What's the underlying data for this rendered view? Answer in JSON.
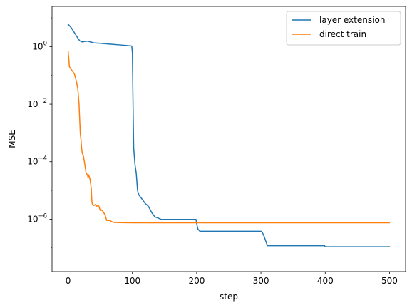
{
  "chart_data": {
    "type": "line",
    "title": "",
    "xlabel": "step",
    "ylabel": "MSE",
    "xlim": [
      -25,
      525
    ],
    "ylim": [
      1.5e-08,
      25
    ],
    "yscale": "log",
    "grid": false,
    "legend_position": "top-right",
    "xticks": [
      0,
      100,
      200,
      300,
      400,
      500
    ],
    "xtick_labels": [
      "0",
      "100",
      "200",
      "300",
      "400",
      "500"
    ],
    "yticks": [
      {
        "value": 1,
        "base": "10",
        "exp": "0"
      },
      {
        "value": 0.01,
        "base": "10",
        "exp": "−2"
      },
      {
        "value": 0.0001,
        "base": "10",
        "exp": "−4"
      },
      {
        "value": 1e-06,
        "base": "10",
        "exp": "−6"
      }
    ],
    "series": [
      {
        "name": "layer extension",
        "color": "#1f77b4",
        "points": [
          [
            0,
            6.0
          ],
          [
            5,
            4.5
          ],
          [
            10,
            3.0
          ],
          [
            15,
            2.0
          ],
          [
            18,
            1.6
          ],
          [
            22,
            1.45
          ],
          [
            25,
            1.5
          ],
          [
            30,
            1.55
          ],
          [
            35,
            1.45
          ],
          [
            40,
            1.35
          ],
          [
            50,
            1.3
          ],
          [
            60,
            1.25
          ],
          [
            70,
            1.2
          ],
          [
            80,
            1.15
          ],
          [
            90,
            1.1
          ],
          [
            99,
            1.05
          ],
          [
            100,
            0.6
          ],
          [
            101,
            0.01
          ],
          [
            102,
            0.0003
          ],
          [
            104,
            8e-05
          ],
          [
            106,
            4e-05
          ],
          [
            108,
            1e-05
          ],
          [
            110,
            7e-06
          ],
          [
            115,
            5e-06
          ],
          [
            120,
            3.5e-06
          ],
          [
            125,
            2.8e-06
          ],
          [
            130,
            1.7e-06
          ],
          [
            135,
            1.2e-06
          ],
          [
            140,
            1.1e-06
          ],
          [
            145,
            9.8e-07
          ],
          [
            160,
            9.8e-07
          ],
          [
            180,
            9.8e-07
          ],
          [
            199,
            9.8e-07
          ],
          [
            200,
            7e-07
          ],
          [
            202,
            4.5e-07
          ],
          [
            205,
            3.8e-07
          ],
          [
            220,
            3.8e-07
          ],
          [
            260,
            3.8e-07
          ],
          [
            299,
            3.8e-07
          ],
          [
            300,
            3.8e-07
          ],
          [
            302,
            3.5e-07
          ],
          [
            305,
            2.5e-07
          ],
          [
            308,
            1.6e-07
          ],
          [
            310,
            1.2e-07
          ],
          [
            350,
            1.2e-07
          ],
          [
            399,
            1.2e-07
          ],
          [
            400,
            1.1e-07
          ],
          [
            450,
            1.1e-07
          ],
          [
            500,
            1.1e-07
          ]
        ]
      },
      {
        "name": "direct train",
        "color": "#ff7f0e",
        "points": [
          [
            0,
            0.7
          ],
          [
            1,
            0.4
          ],
          [
            2,
            0.2
          ],
          [
            4,
            0.17
          ],
          [
            6,
            0.15
          ],
          [
            8,
            0.13
          ],
          [
            10,
            0.11
          ],
          [
            11,
            0.09
          ],
          [
            13,
            0.06
          ],
          [
            15,
            0.035
          ],
          [
            16,
            0.02
          ],
          [
            17,
            0.01
          ],
          [
            18,
            0.003
          ],
          [
            19,
            0.0009
          ],
          [
            20,
            0.0006
          ],
          [
            21,
            0.0003
          ],
          [
            22,
            0.0002
          ],
          [
            24,
            0.00015
          ],
          [
            26,
            8e-05
          ],
          [
            28,
            4e-05
          ],
          [
            30,
            3.5e-05
          ],
          [
            31,
            2.8e-05
          ],
          [
            32,
            3.5e-05
          ],
          [
            34,
            2.5e-05
          ],
          [
            36,
            1.2e-05
          ],
          [
            37,
            4e-06
          ],
          [
            38,
            3.2e-06
          ],
          [
            40,
            3e-06
          ],
          [
            42,
            3.2e-06
          ],
          [
            44,
            2.8e-06
          ],
          [
            46,
            3e-06
          ],
          [
            48,
            2.8e-06
          ],
          [
            50,
            2e-06
          ],
          [
            52,
            2.1e-06
          ],
          [
            54,
            1.9e-06
          ],
          [
            56,
            1.6e-06
          ],
          [
            58,
            1.3e-06
          ],
          [
            60,
            9e-07
          ],
          [
            62,
            9e-07
          ],
          [
            65,
            9e-07
          ],
          [
            68,
            8.2e-07
          ],
          [
            72,
            7.7e-07
          ],
          [
            80,
            7.6e-07
          ],
          [
            100,
            7.5e-07
          ],
          [
            200,
            7.5e-07
          ],
          [
            300,
            7.5e-07
          ],
          [
            400,
            7.5e-07
          ],
          [
            500,
            7.5e-07
          ]
        ]
      }
    ]
  }
}
